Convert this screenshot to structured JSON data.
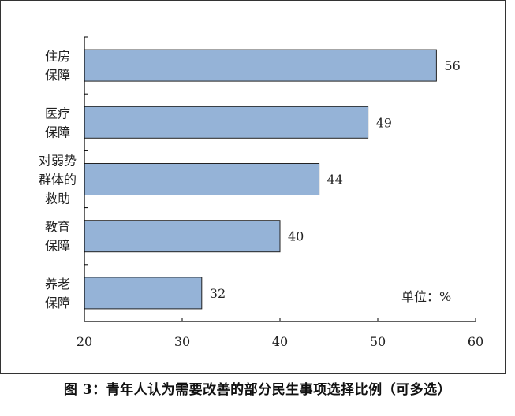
{
  "chart_data": {
    "type": "bar",
    "orientation": "horizontal",
    "categories": [
      [
        "住房",
        "保障"
      ],
      [
        "医疗",
        "保障"
      ],
      [
        "对弱势",
        "群体的",
        "救助"
      ],
      [
        "教育",
        "保障"
      ],
      [
        "养老",
        "保障"
      ]
    ],
    "values": [
      56,
      49,
      44,
      40,
      32
    ],
    "xlim": [
      20,
      60
    ],
    "xticks": [
      20,
      30,
      40,
      50,
      60
    ],
    "unit_label": "单位：%",
    "grid": false,
    "bar_color": "#95b3d7",
    "bar_edge_color": "#222222"
  },
  "caption": "图 3：青年人认为需要改善的部分民生事项选择比例（可多选）"
}
